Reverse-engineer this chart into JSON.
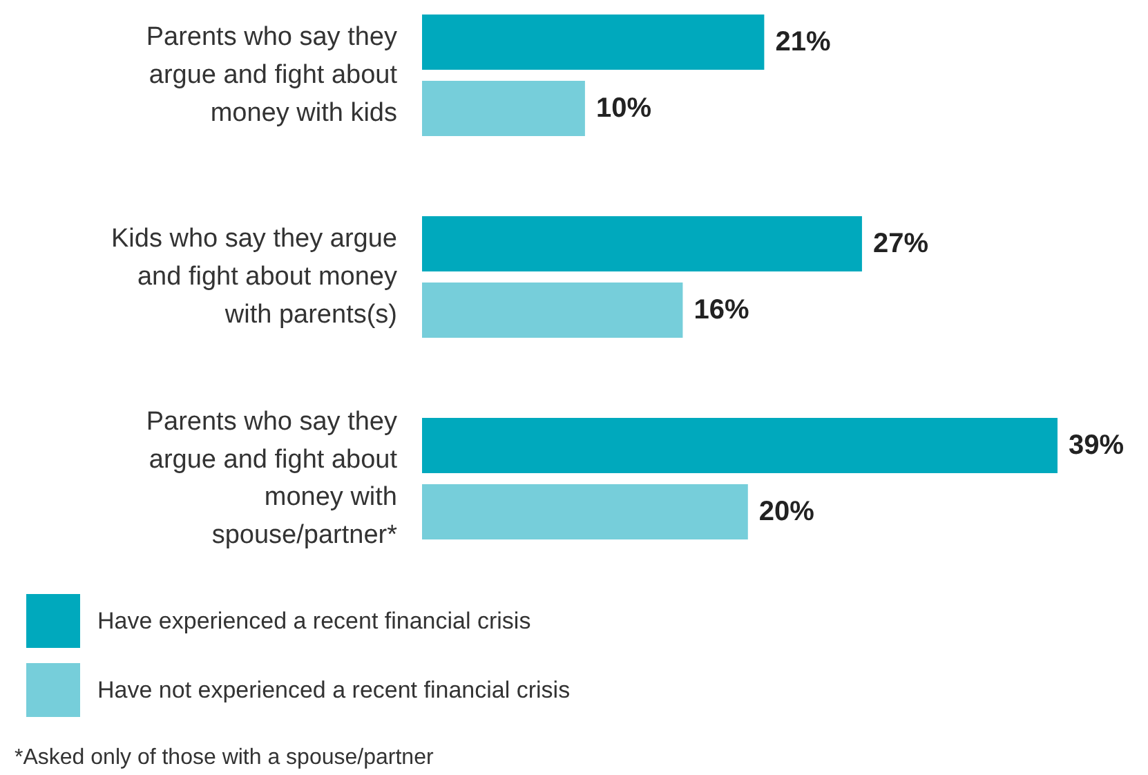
{
  "chart_data": {
    "type": "bar",
    "orientation": "horizontal",
    "categories": [
      "Parents who say they argue and fight about money with kids",
      "Kids who say they argue and fight about money with parents(s)",
      "Parents who say they argue and fight about money with spouse/partner*"
    ],
    "series": [
      {
        "name": "Have experienced a recent financial crisis",
        "color": "#00a9bd",
        "values": [
          21,
          27,
          39
        ],
        "value_labels": [
          "21%",
          "27%",
          "39%"
        ]
      },
      {
        "name": "Have not experienced a recent financial crisis",
        "color": "#76ceda",
        "values": [
          10,
          16,
          20
        ],
        "value_labels": [
          "10%",
          "16%",
          "20%"
        ]
      }
    ],
    "legend": "bottom left",
    "annotations": [
      "*Asked only of those with a spouse/partner"
    ]
  }
}
